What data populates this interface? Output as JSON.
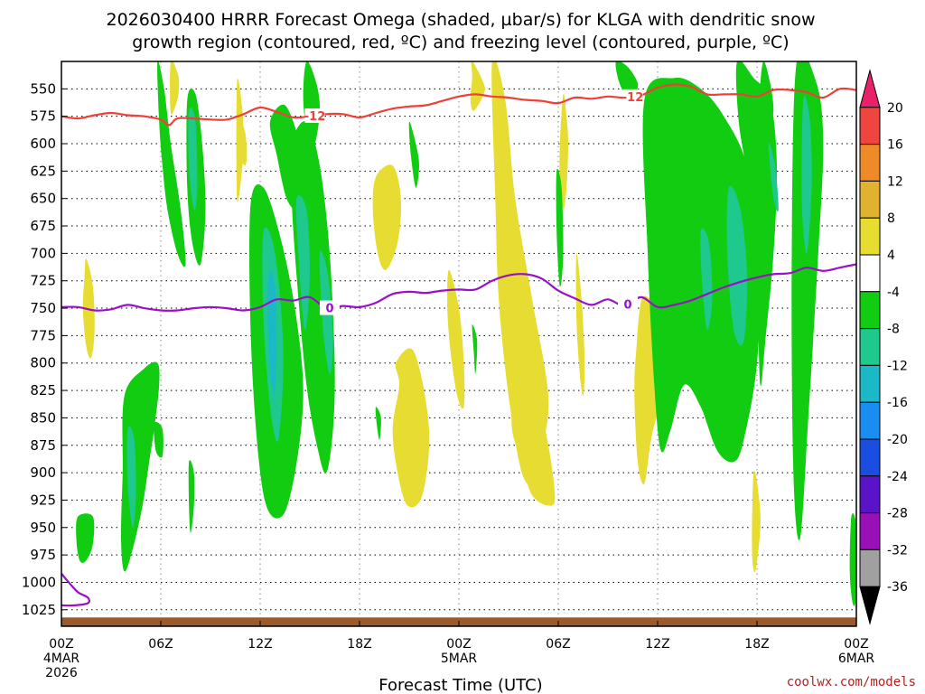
{
  "chart_data": {
    "type": "heatmap",
    "title_line1": "2026030400 HRRR Forecast Omega (shaded, µbar/s) for KLGA with dendritic snow",
    "title_line2": "growth region (contoured, red, ºC) and freezing level (contoured, purple, ºC)",
    "xlabel": "Forecast Time (UTC)",
    "credit": "coolwx.com/models",
    "x_range_hours": [
      0,
      48
    ],
    "y_range_mb": [
      525,
      1040
    ],
    "y_ticks": [
      550,
      575,
      600,
      625,
      650,
      675,
      700,
      725,
      750,
      775,
      800,
      825,
      850,
      875,
      900,
      925,
      950,
      975,
      1000,
      1025
    ],
    "x_ticks": [
      {
        "hour": 0,
        "label": "00Z",
        "date": "4MAR",
        "year": "2026"
      },
      {
        "hour": 6,
        "label": "06Z"
      },
      {
        "hour": 12,
        "label": "12Z"
      },
      {
        "hour": 18,
        "label": "18Z"
      },
      {
        "hour": 24,
        "label": "00Z",
        "date": "5MAR"
      },
      {
        "hour": 30,
        "label": "06Z"
      },
      {
        "hour": 36,
        "label": "12Z"
      },
      {
        "hour": 42,
        "label": "18Z"
      },
      {
        "hour": 48,
        "label": "00Z",
        "date": "6MAR"
      }
    ],
    "colorbar": {
      "labels": [
        "20",
        "16",
        "12",
        "8",
        "4",
        "-4",
        "-8",
        "-12",
        "-16",
        "-20",
        "-24",
        "-28",
        "-32",
        "-36"
      ],
      "colors": [
        "#e8216b",
        "#ee4540",
        "#ef8a28",
        "#e0b230",
        "#e6dc32",
        "#ffffff",
        "#11cc11",
        "#1fc88c",
        "#1bb8c8",
        "#1a8ef0",
        "#1a4ee0",
        "#5a14c8",
        "#9910b8",
        "#a0a0a0",
        "#000000"
      ]
    },
    "contour_colors": {
      "dgz": "#ee4038",
      "freezing": "#9910c8",
      "ground": "#9c5a2c"
    },
    "dgz_minus12_line": {
      "label": "-12",
      "hours": [
        0,
        1,
        2,
        3,
        4,
        5,
        6,
        6.5,
        7,
        8,
        9,
        10,
        11,
        12,
        13,
        14,
        15,
        16,
        17,
        18,
        19,
        20,
        21,
        22,
        23,
        24,
        25,
        26,
        27,
        28,
        29,
        30,
        31,
        32,
        33,
        34,
        35,
        36,
        37,
        38,
        39,
        40,
        41,
        42,
        43,
        44,
        45,
        46,
        47,
        48
      ],
      "pressure": [
        575,
        577,
        574,
        572,
        574,
        575,
        578,
        583,
        577,
        577,
        578,
        578,
        573,
        567,
        571,
        576,
        575,
        573,
        573,
        576,
        572,
        568,
        566,
        565,
        561,
        557,
        555,
        557,
        558,
        560,
        561,
        563,
        558,
        559,
        557,
        558,
        556,
        549,
        546,
        548,
        555,
        555,
        555,
        557,
        551,
        551,
        553,
        558,
        550,
        551
      ]
    },
    "freezing_line": {
      "label": "0",
      "hours": [
        0,
        1,
        2,
        3,
        4,
        5,
        6,
        7,
        8,
        9,
        10,
        11,
        12,
        13,
        14,
        15,
        16,
        17,
        18,
        19,
        20,
        21,
        22,
        23,
        24,
        25,
        26,
        27,
        28,
        29,
        30,
        31,
        32,
        33,
        34,
        35,
        36,
        37,
        38,
        39,
        40,
        41,
        42,
        43,
        44,
        45,
        46,
        47,
        48
      ],
      "pressure": [
        749,
        749,
        752,
        751,
        747,
        750,
        752,
        752,
        750,
        749,
        750,
        752,
        749,
        742,
        743,
        740,
        750,
        748,
        749,
        745,
        737,
        735,
        736,
        734,
        733,
        733,
        725,
        720,
        719,
        723,
        734,
        741,
        747,
        742,
        748,
        740,
        749,
        747,
        743,
        737,
        731,
        726,
        722,
        719,
        718,
        713,
        716,
        713,
        710
      ]
    },
    "freezing_tail": {
      "hours": [
        0,
        0.5,
        1.0,
        1.6,
        1.6,
        0.8,
        0
      ],
      "pressure": [
        992,
        1001,
        1009,
        1014,
        1019,
        1021,
        1021
      ]
    },
    "ground_level_mb": 1032,
    "omega_regions": [
      {
        "c": "#e6dc32",
        "h": [
          6.6,
          7.0,
          7.1,
          7.0,
          6.6
        ],
        "p": [
          525,
          535,
          545,
          560,
          572
        ]
      },
      {
        "c": "#e6dc32",
        "h": [
          10.6,
          10.9,
          11.0,
          10.9,
          10.6
        ],
        "p": [
          545,
          565,
          600,
          625,
          650
        ]
      },
      {
        "c": "#e6dc32",
        "h": [
          10.8,
          11.1,
          11.2,
          11.1,
          10.9,
          10.7
        ],
        "p": [
          580,
          590,
          610,
          620,
          615,
          600
        ]
      },
      {
        "c": "#e6dc32",
        "h": [
          1.5,
          1.9,
          2.0,
          1.8,
          1.5,
          1.3,
          1.4
        ],
        "p": [
          705,
          730,
          770,
          795,
          785,
          750,
          720
        ]
      },
      {
        "c": "#e6dc32",
        "h": [
          19.0,
          20.0,
          20.5,
          20.3,
          19.6,
          19.1,
          18.8
        ],
        "p": [
          630,
          620,
          650,
          690,
          715,
          700,
          660
        ]
      },
      {
        "c": "#e6dc32",
        "h": [
          24.8,
          25.5,
          25.5,
          24.9,
          24.7,
          24.8
        ],
        "p": [
          525,
          545,
          555,
          570,
          560,
          540
        ]
      },
      {
        "c": "#e6dc32",
        "h": [
          26.0,
          26.8,
          27.4,
          28.4,
          29.4,
          29.0,
          28.6,
          27.8,
          27.0,
          26.4,
          26.2
        ],
        "p": [
          525,
          560,
          650,
          740,
          830,
          880,
          910,
          900,
          830,
          740,
          650
        ]
      },
      {
        "c": "#e6dc32",
        "h": [
          23.4,
          24.0,
          24.3,
          24.3,
          23.9,
          23.5,
          23.3
        ],
        "p": [
          715,
          750,
          800,
          840,
          830,
          790,
          750
        ]
      },
      {
        "c": "#e6dc32",
        "h": [
          30.3,
          30.5,
          30.6,
          30.5,
          30.3,
          30.1,
          30.1
        ],
        "p": [
          555,
          575,
          600,
          640,
          660,
          630,
          600
        ]
      },
      {
        "c": "#e6dc32",
        "h": [
          31.1,
          31.4,
          31.6,
          31.5,
          31.3,
          31.1
        ],
        "p": [
          700,
          740,
          800,
          830,
          810,
          760
        ]
      },
      {
        "c": "#e6dc32",
        "h": [
          20.2,
          21.3,
          22.2,
          21.8,
          20.9,
          20.3,
          20.0,
          20.4
        ],
        "p": [
          800,
          790,
          860,
          920,
          930,
          900,
          860,
          820
        ]
      },
      {
        "c": "#e6dc32",
        "h": [
          27.4,
          28.2,
          29.2,
          29.8,
          29.4,
          28.4,
          27.8,
          27.2
        ],
        "p": [
          830,
          820,
          860,
          920,
          930,
          920,
          890,
          860
        ]
      },
      {
        "c": "#e6dc32",
        "h": [
          35.1,
          36.1,
          36.3,
          35.6,
          35.2,
          34.8,
          34.6,
          34.7
        ],
        "p": [
          740,
          760,
          820,
          870,
          910,
          890,
          830,
          790
        ]
      },
      {
        "c": "#e6dc32",
        "h": [
          41.8,
          42.1,
          42.2,
          41.9,
          41.7
        ],
        "p": [
          900,
          920,
          950,
          990,
          970
        ]
      },
      {
        "c": "#11cc11",
        "h": [
          5.8,
          6.2,
          6.6,
          7.2,
          7.5,
          7.0,
          6.4,
          6.1,
          5.9
        ],
        "p": [
          525,
          550,
          600,
          660,
          710,
          700,
          660,
          620,
          580
        ]
      },
      {
        "c": "#11cc11",
        "h": [
          7.6,
          8.1,
          8.5,
          8.7,
          8.4,
          7.9,
          7.6
        ],
        "p": [
          560,
          555,
          600,
          660,
          710,
          690,
          640
        ]
      },
      {
        "c": "#11cc11",
        "h": [
          11.4,
          12.2,
          13.3,
          14.2,
          14.6,
          14.1,
          13.3,
          12.2,
          11.5
        ],
        "p": [
          660,
          640,
          690,
          760,
          830,
          900,
          940,
          920,
          800
        ]
      },
      {
        "c": "#11cc11",
        "h": [
          12.6,
          13.5,
          14.4,
          14.8,
          14.3,
          13.6,
          13.0
        ],
        "p": [
          580,
          565,
          600,
          640,
          660,
          650,
          610
        ]
      },
      {
        "c": "#11cc11",
        "h": [
          14.8,
          15.4,
          15.6,
          15.3,
          14.9,
          14.6
        ],
        "p": [
          525,
          545,
          570,
          600,
          595,
          560
        ]
      },
      {
        "c": "#11cc11",
        "h": [
          13.9,
          14.8,
          15.6,
          16.2,
          16.5,
          16.4,
          16.0,
          15.5,
          14.8,
          14.2,
          13.9
        ],
        "p": [
          600,
          580,
          620,
          700,
          800,
          860,
          900,
          880,
          820,
          720,
          650
        ]
      },
      {
        "c": "#11cc11",
        "h": [
          3.8,
          5.0,
          5.8,
          5.9,
          5.6,
          5.3,
          4.9,
          4.3,
          3.8,
          3.6,
          3.7
        ],
        "p": [
          830,
          805,
          800,
          820,
          860,
          890,
          930,
          970,
          990,
          960,
          900
        ]
      },
      {
        "c": "#11cc11",
        "h": [
          5.6,
          6.1,
          6.1,
          5.7
        ],
        "p": [
          855,
          860,
          885,
          880
        ]
      },
      {
        "c": "#11cc11",
        "h": [
          7.7,
          8.0,
          8.0,
          7.8,
          7.7
        ],
        "p": [
          890,
          900,
          930,
          955,
          930
        ]
      },
      {
        "c": "#11cc11",
        "h": [
          1.0,
          1.9,
          1.9,
          1.5,
          1.1,
          0.9
        ],
        "p": [
          940,
          940,
          965,
          980,
          980,
          960
        ]
      },
      {
        "c": "#11cc11",
        "h": [
          21.0,
          21.4,
          21.6,
          21.4,
          21.1
        ],
        "p": [
          580,
          600,
          620,
          640,
          610
        ]
      },
      {
        "c": "#11cc11",
        "h": [
          24.8,
          25.1,
          25.0,
          24.9
        ],
        "p": [
          765,
          780,
          810,
          790
        ]
      },
      {
        "c": "#11cc11",
        "h": [
          19.0,
          19.3,
          19.2,
          19.0
        ],
        "p": [
          840,
          850,
          870,
          850
        ]
      },
      {
        "c": "#11cc11",
        "h": [
          29.9,
          30.2,
          30.3,
          30.1,
          29.9
        ],
        "p": [
          625,
          640,
          700,
          730,
          680
        ]
      },
      {
        "c": "#11cc11",
        "h": [
          33.5,
          34.2,
          34.8,
          34.6,
          34.3,
          34.0,
          33.6
        ],
        "p": [
          525,
          530,
          545,
          555,
          560,
          555,
          540
        ]
      },
      {
        "c": "#11cc11",
        "h": [
          35.2,
          37.0,
          38.6,
          40.0,
          41.4,
          42.2,
          42.0,
          41.2,
          40.6,
          39.6,
          38.6,
          37.6,
          36.8,
          36.2,
          35.8,
          35.4
        ],
        "p": [
          560,
          540,
          550,
          575,
          620,
          700,
          800,
          870,
          890,
          880,
          840,
          820,
          860,
          880,
          820,
          700
        ]
      },
      {
        "c": "#11cc11",
        "h": [
          40.8,
          41.8,
          42.8,
          43.2,
          43.0,
          42.5,
          42.2,
          42.0,
          41.5,
          40.9
        ],
        "p": [
          525,
          540,
          560,
          620,
          700,
          780,
          820,
          740,
          640,
          580
        ]
      },
      {
        "c": "#11cc11",
        "h": [
          42.4,
          42.8,
          43.0,
          42.7,
          42.4,
          42.2
        ],
        "p": [
          525,
          545,
          570,
          580,
          575,
          550
        ]
      },
      {
        "c": "#11cc11",
        "h": [
          44.4,
          45.6,
          46.0,
          45.7,
          45.1,
          44.6,
          44.2,
          44.1
        ],
        "p": [
          525,
          545,
          600,
          700,
          850,
          960,
          900,
          700
        ]
      },
      {
        "c": "#11cc11",
        "h": [
          47.7,
          48.0,
          48.0,
          47.8,
          47.6
        ],
        "p": [
          940,
          950,
          1010,
          1020,
          990
        ]
      },
      {
        "c": "#1fc88c",
        "h": [
          12.2,
          12.9,
          13.4,
          13.1,
          12.6,
          12.2
        ],
        "p": [
          680,
          700,
          790,
          870,
          840,
          760
        ]
      },
      {
        "c": "#1fc88c",
        "h": [
          14.2,
          14.8,
          15.0,
          14.7,
          14.3
        ],
        "p": [
          650,
          660,
          720,
          770,
          700
        ]
      },
      {
        "c": "#1fc88c",
        "h": [
          15.6,
          16.1,
          16.4,
          16.2,
          15.8
        ],
        "p": [
          700,
          720,
          780,
          810,
          770
        ]
      },
      {
        "c": "#1fc88c",
        "h": [
          7.7,
          8.1,
          8.2,
          8.0,
          7.7
        ],
        "p": [
          570,
          580,
          640,
          660,
          620
        ]
      },
      {
        "c": "#1fc88c",
        "h": [
          4.0,
          4.4,
          4.5,
          4.3,
          4.0
        ],
        "p": [
          860,
          870,
          920,
          950,
          910
        ]
      },
      {
        "c": "#1fc88c",
        "h": [
          40.3,
          41.0,
          41.4,
          41.2,
          40.6,
          40.2
        ],
        "p": [
          640,
          660,
          720,
          780,
          770,
          700
        ]
      },
      {
        "c": "#1fc88c",
        "h": [
          38.6,
          39.1,
          39.3,
          39.0,
          38.7
        ],
        "p": [
          680,
          690,
          740,
          770,
          730
        ]
      },
      {
        "c": "#1fc88c",
        "h": [
          42.7,
          43.1,
          43.3,
          43.0
        ],
        "p": [
          600,
          620,
          660,
          650
        ]
      },
      {
        "c": "#1fc88c",
        "h": [
          44.8,
          45.2,
          45.3,
          45.0,
          44.7
        ],
        "p": [
          560,
          580,
          640,
          700,
          650
        ]
      },
      {
        "c": "#1bb8c8",
        "h": [
          12.5,
          12.9,
          13.0,
          12.8,
          12.5
        ],
        "p": [
          720,
          730,
          790,
          830,
          780
        ]
      }
    ]
  }
}
